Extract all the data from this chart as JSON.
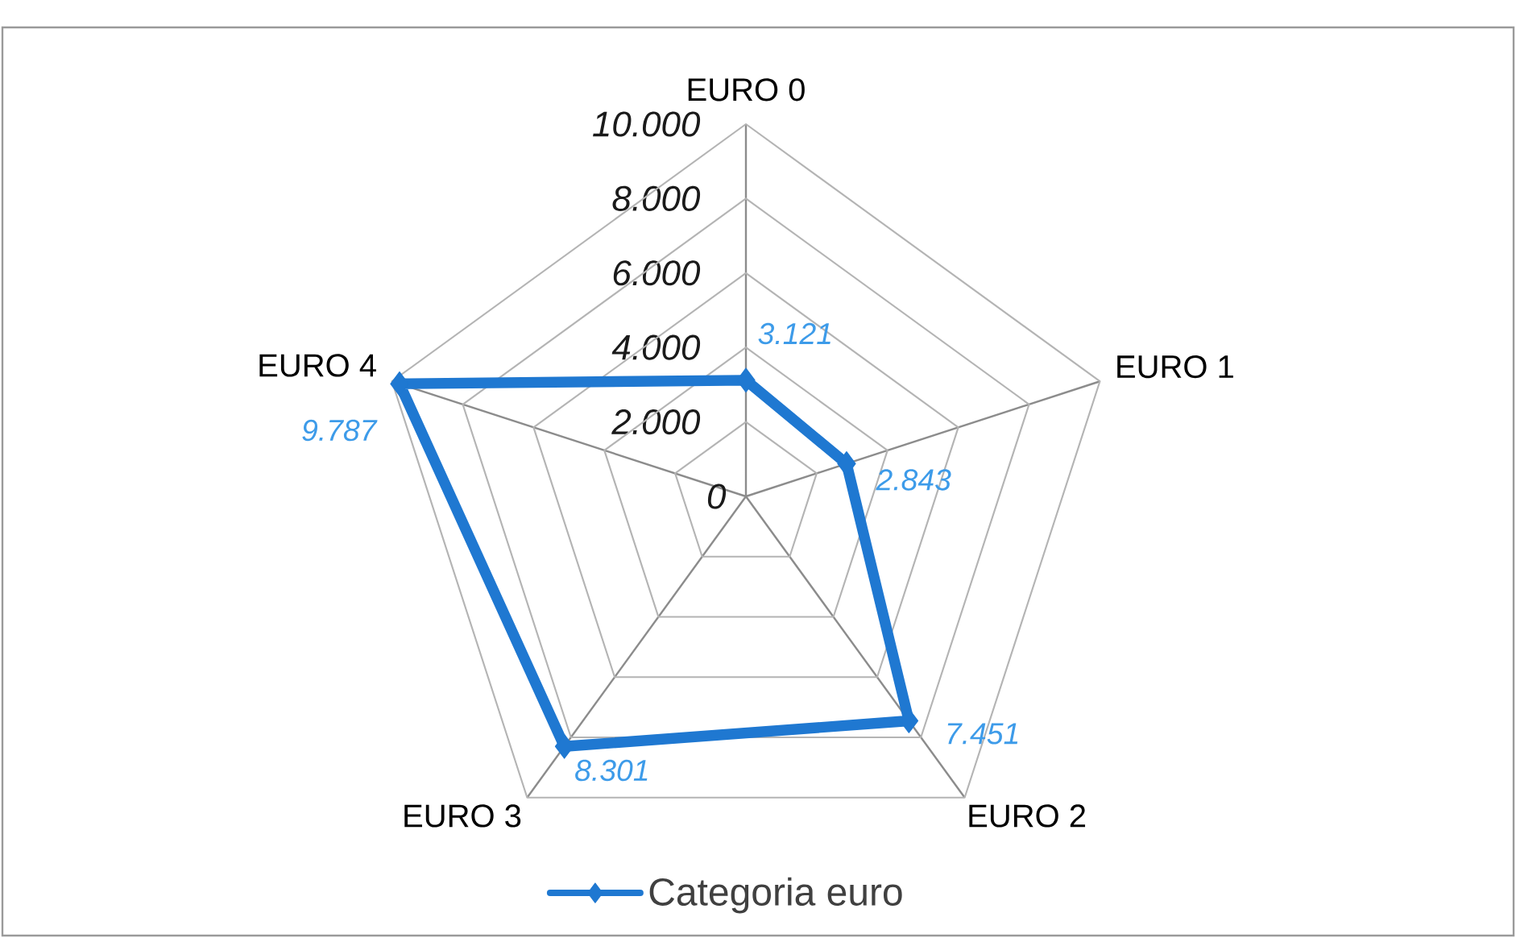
{
  "chart_data": {
    "type": "radar",
    "categories": [
      "EURO 0",
      "EURO 1",
      "EURO 2",
      "EURO 3",
      "EURO 4"
    ],
    "series": [
      {
        "name": "Categoria euro",
        "color": "#1f78d1",
        "values": [
          3121,
          2843,
          7451,
          8301,
          9787
        ],
        "value_labels": [
          "3.121",
          "2.843",
          "7.451",
          "8.301",
          "9.787"
        ]
      }
    ],
    "ylim": [
      0,
      10000
    ],
    "yticks": [
      {
        "value": 0,
        "label": "0"
      },
      {
        "value": 2000,
        "label": "2.000"
      },
      {
        "value": 4000,
        "label": "4.000"
      },
      {
        "value": 6000,
        "label": "6.000"
      },
      {
        "value": 8000,
        "label": "8.000"
      },
      {
        "value": 10000,
        "label": "10.000"
      }
    ],
    "grid": true,
    "legend": "bottom",
    "marker": "diamond",
    "line_style": "solid"
  }
}
